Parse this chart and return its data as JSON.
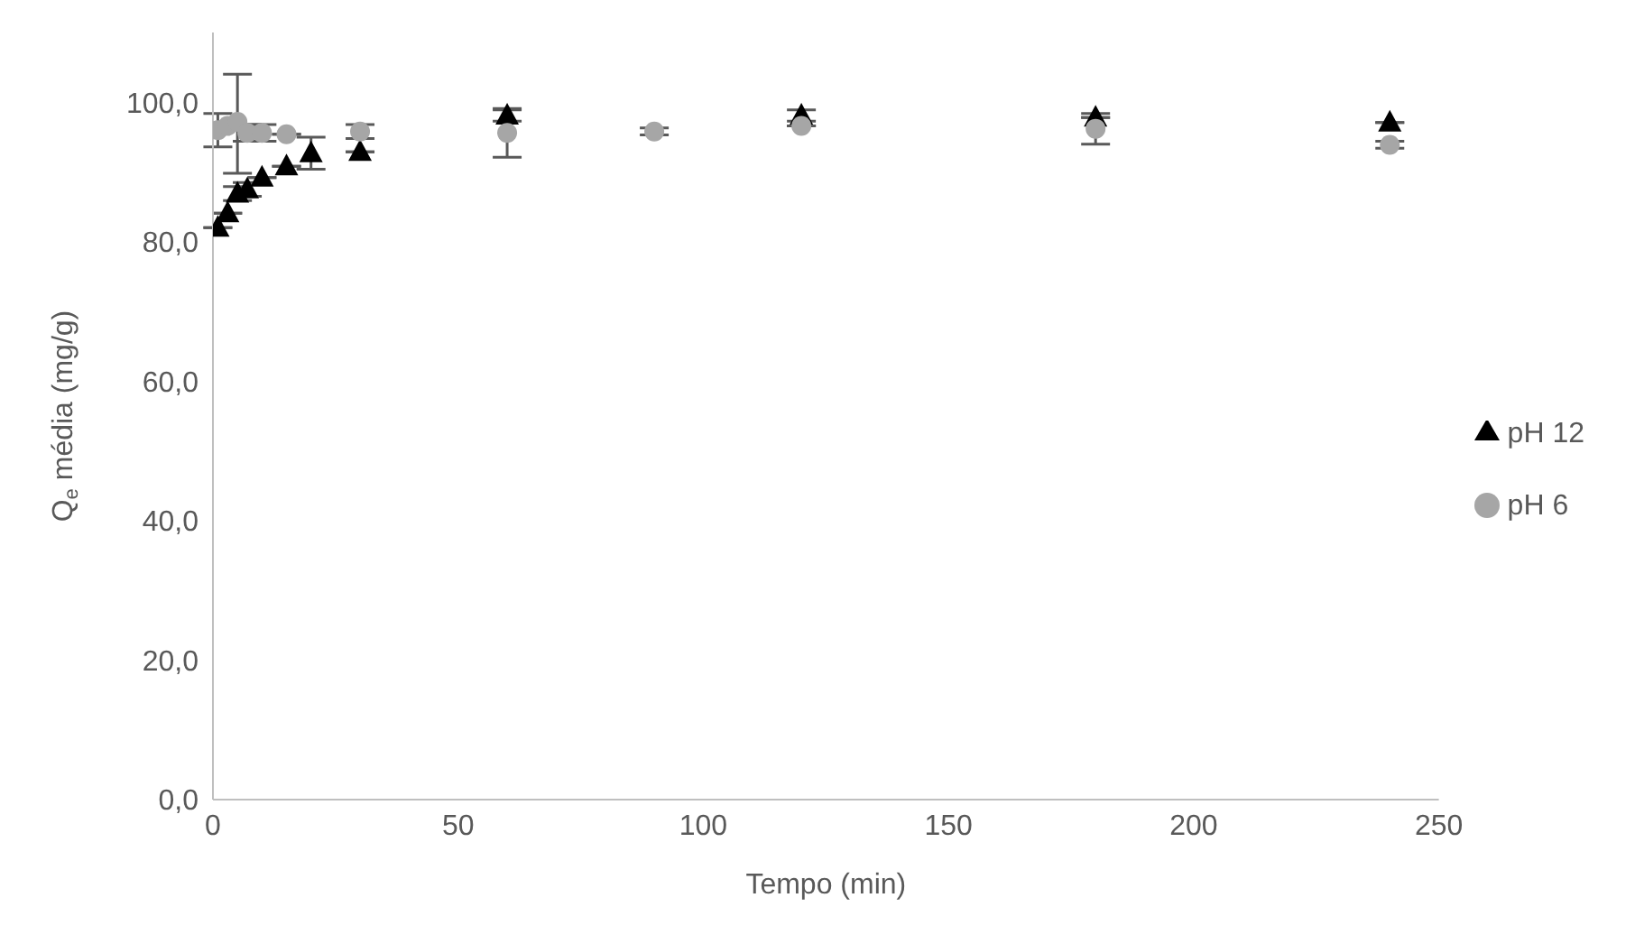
{
  "chart_data": {
    "type": "scatter",
    "xlabel": "Tempo (min)",
    "ylabel": "Q$_{e}$ média (mg/g)",
    "xlim": [
      0,
      250
    ],
    "xticks": [
      0,
      50,
      100,
      150,
      200,
      250
    ],
    "ylim": [
      0,
      110
    ],
    "yticks": [
      {
        "value": 0,
        "label": "0,0"
      },
      {
        "value": 20,
        "label": "20,0"
      },
      {
        "value": 40,
        "label": "40,0"
      },
      {
        "value": 60,
        "label": "60,0"
      },
      {
        "value": 80,
        "label": "80,0"
      },
      {
        "value": 100,
        "label": "100,0"
      }
    ],
    "grid": false,
    "legend": "right",
    "series": [
      {
        "name": "pH 12",
        "color": "#000000",
        "marker": "triangle",
        "x": [
          1,
          3,
          5,
          7,
          10,
          15,
          20,
          30,
          60,
          120,
          180,
          240
        ],
        "values": [
          82.0,
          84.1,
          86.9,
          87.5,
          89.2,
          90.8,
          92.7,
          92.9,
          98.1,
          98.1,
          97.8,
          97.1
        ],
        "errors": [
          null,
          null,
          1,
          1,
          null,
          null,
          2.3,
          null,
          0.8,
          0.8,
          null,
          null
        ]
      },
      {
        "name": "pH 6",
        "color": "#a6a6a6",
        "marker": "circle",
        "x": [
          1,
          3,
          5,
          7,
          10,
          15,
          30,
          60,
          90,
          120,
          180,
          240
        ],
        "values": [
          96.0,
          96.6,
          97.2,
          95.6,
          95.6,
          95.4,
          95.8,
          95.6,
          95.8,
          96.6,
          96.2,
          93.9
        ],
        "errors": [
          2.4,
          null,
          [
            89.8,
            104.0
          ],
          1.2,
          1.2,
          null,
          1,
          3.5,
          0.5,
          null,
          2.2,
          0.5
        ]
      }
    ]
  }
}
